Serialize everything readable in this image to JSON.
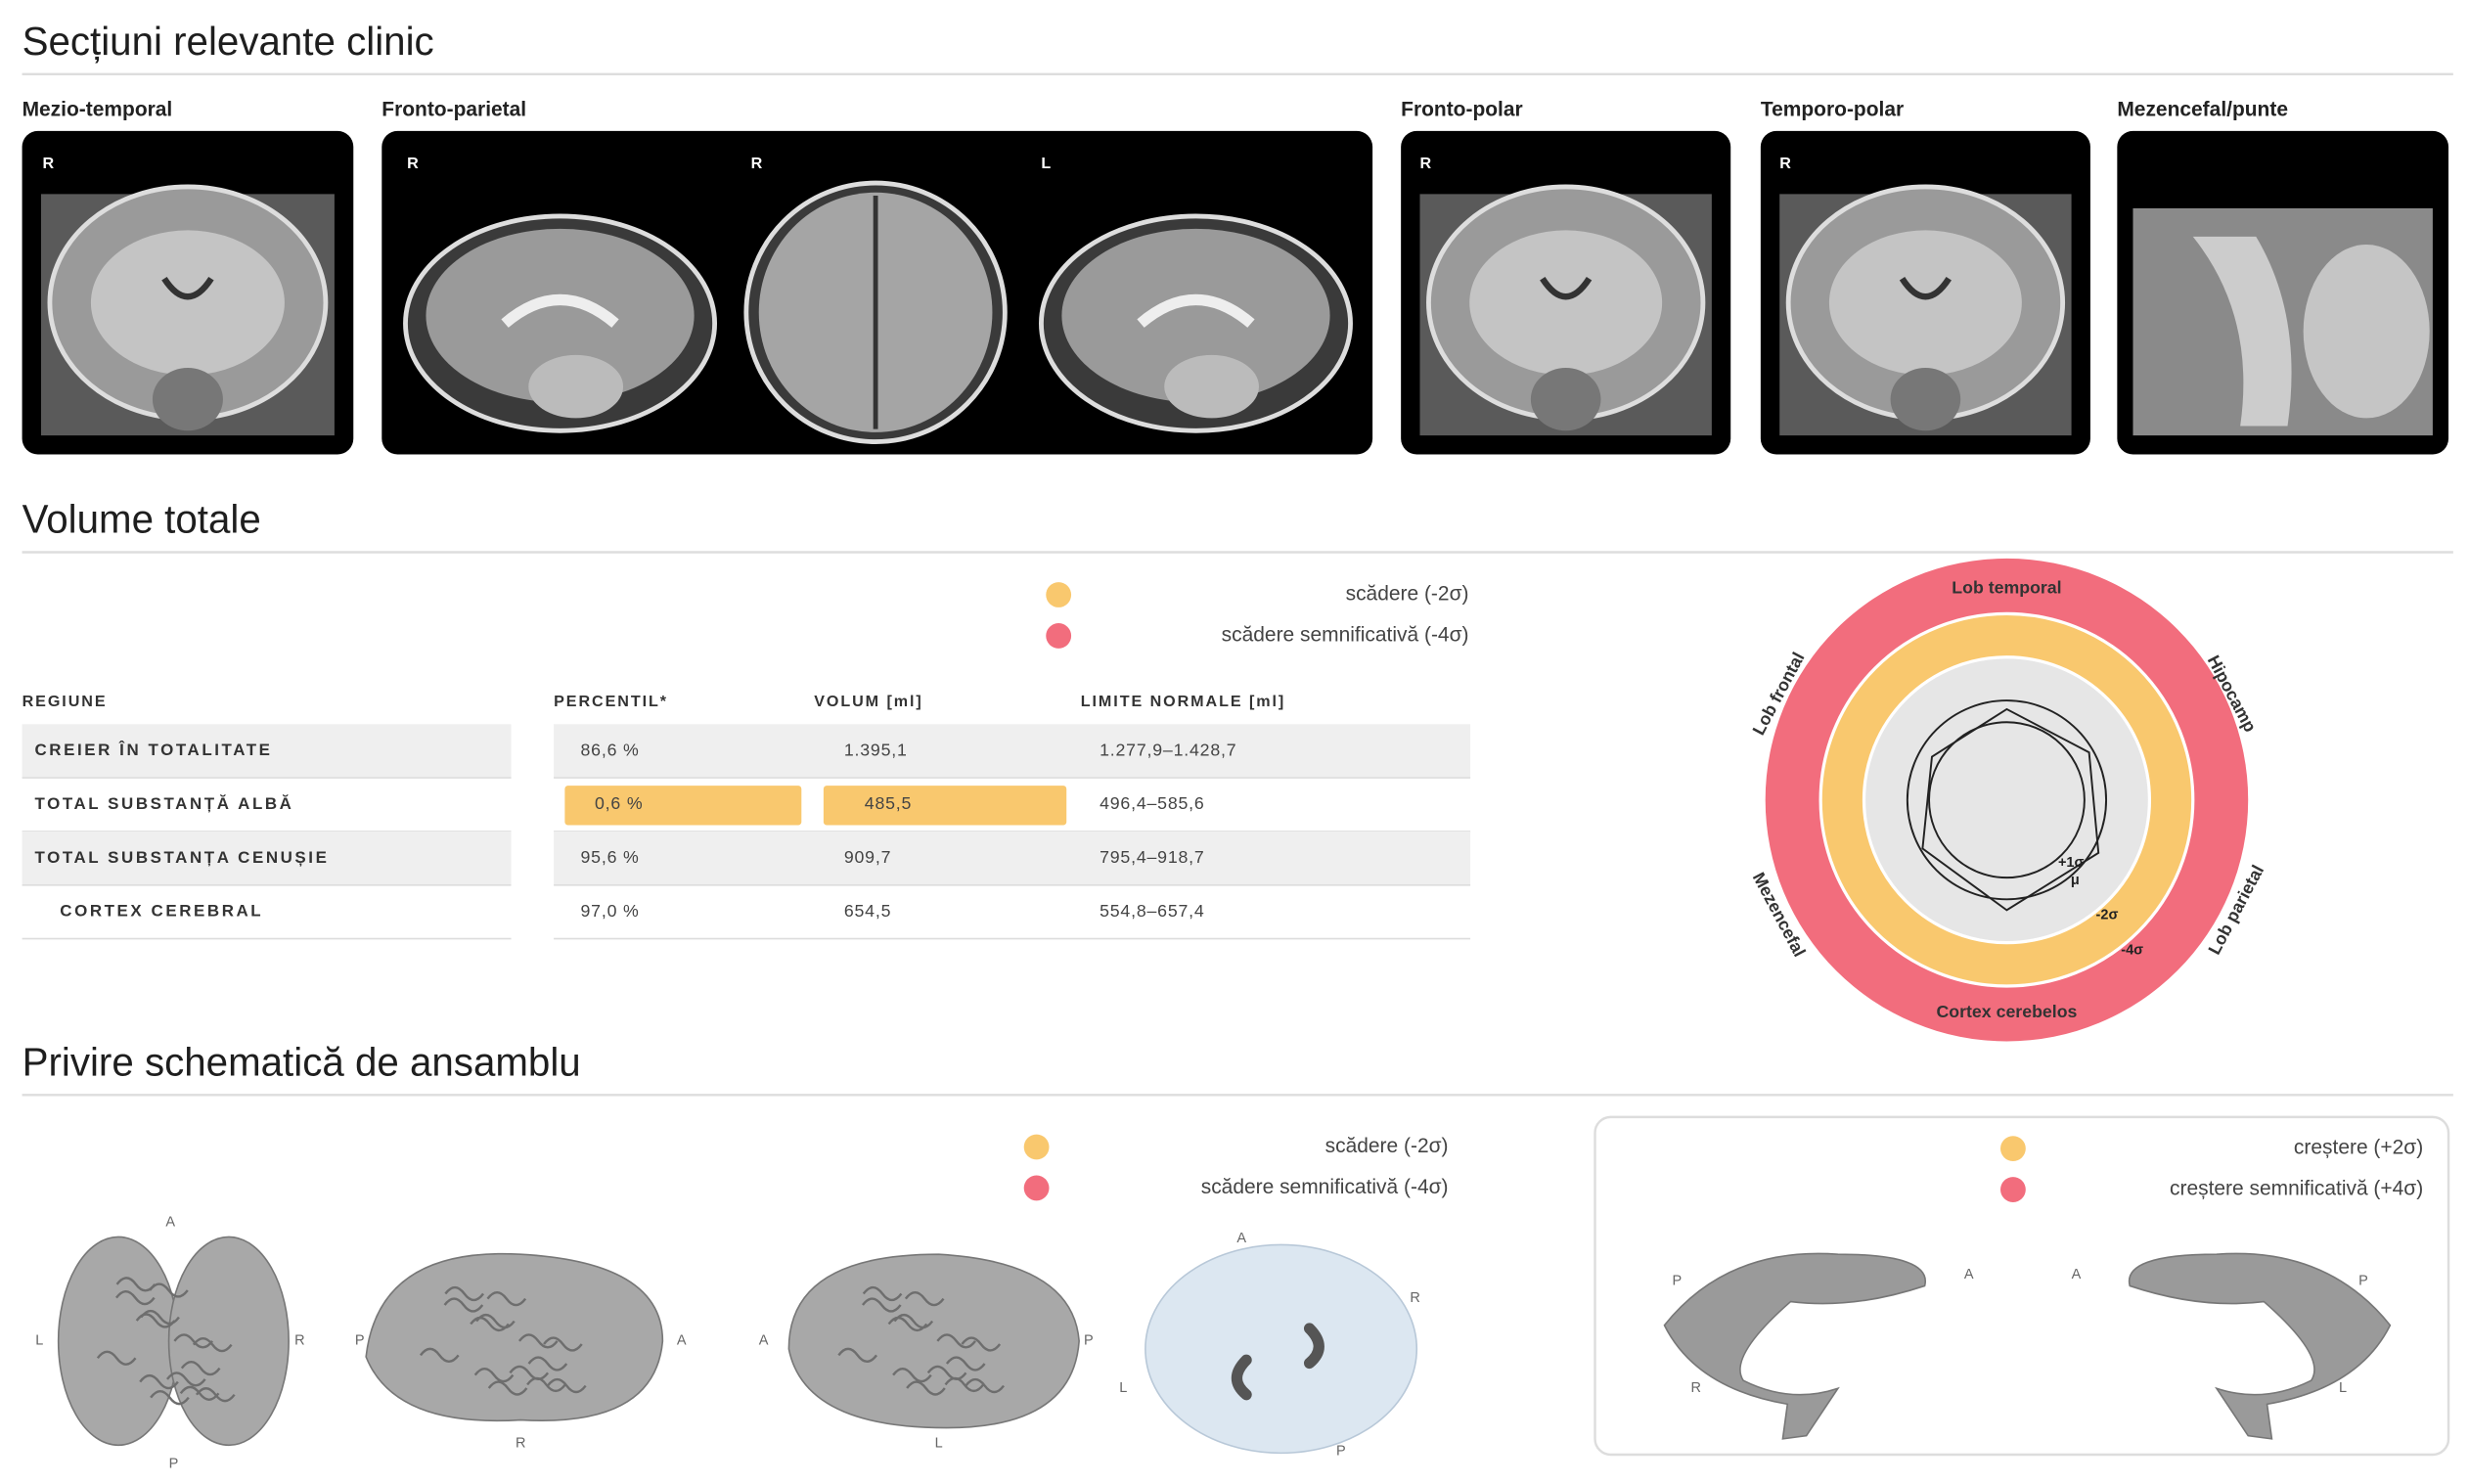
{
  "slices": {
    "title": "Secțiuni relevante clinic",
    "panels": [
      {
        "label": "Mezio-temporal",
        "views": [
          "R"
        ]
      },
      {
        "label": "Fronto-parietal",
        "views": [
          "R",
          "R",
          "L"
        ]
      },
      {
        "label": "Fronto-polar",
        "views": [
          "R"
        ]
      },
      {
        "label": "Temporo-polar",
        "views": [
          "R"
        ]
      },
      {
        "label": "Mezencefal/punte",
        "views": []
      }
    ]
  },
  "volumes": {
    "title": "Volume totale",
    "legend": [
      {
        "label": "scădere (-2σ)",
        "color": "#f9c86e"
      },
      {
        "label": "scădere semnificativă (-4σ)",
        "color": "#f26d7d"
      }
    ],
    "table": {
      "headers": [
        "REGIUNE",
        "PERCENTIL*",
        "VOLUM [ml]",
        "LIMITE NORMALE [ml]"
      ],
      "rows": [
        {
          "cells": [
            "CREIER ÎN TOTALITATE",
            "86,6 %",
            "1.395,1",
            "1.277,9–1.428,7"
          ]
        },
        {
          "cells": [
            "TOTAL SUBSTANȚĂ ALBĂ",
            "0,6 %",
            "485,5",
            "496,4–585,6"
          ],
          "highlight": "#f9c86e"
        },
        {
          "cells": [
            "TOTAL SUBSTANȚA CENUȘIE",
            "95,6 %",
            "909,7",
            "795,4–918,7"
          ]
        },
        {
          "cells": [
            "CORTEX CEREBRAL",
            "97,0 %",
            "654,5",
            "554,8–657,4"
          ],
          "indent": true
        }
      ]
    },
    "radar": {
      "axes": [
        "Lob temporal",
        "Hipocamp",
        "Lob parietal",
        "Cortex cerebelos",
        "Mezencefal",
        "Lob frontal"
      ],
      "values": [
        0.4,
        0.2,
        -0.3,
        -0.5,
        0.1,
        0.6
      ],
      "levels": [
        {
          "value": 1,
          "label": "+1σ"
        },
        {
          "value": 0,
          "label": "μ"
        },
        {
          "value": -2,
          "label": "-2σ"
        },
        {
          "value": -4,
          "label": "-4σ"
        }
      ],
      "normal_color": "#e6e6e6"
    }
  },
  "overview": {
    "title": "Privire schematică de ansamblu",
    "legend_decrease": [
      {
        "label": "scădere (-2σ)",
        "color": "#f9c86e"
      },
      {
        "label": "scădere semnificativă (-4σ)",
        "color": "#f26d7d"
      }
    ],
    "legend_increase": [
      {
        "label": "creștere (+2σ)",
        "color": "#f9c86e"
      },
      {
        "label": "creștere semnificativă (+4σ)",
        "color": "#f26d7d"
      }
    ],
    "views": [
      {
        "labels": [
          "A",
          "L",
          "R",
          "P"
        ]
      },
      {
        "labels": [
          "P",
          "A",
          "R"
        ]
      },
      {
        "labels": [
          "A",
          "P",
          "L"
        ]
      },
      {
        "labels": [
          "A",
          "R",
          "L",
          "P"
        ]
      },
      {
        "labels": [
          "P",
          "A",
          "R"
        ]
      },
      {
        "labels": [
          "A",
          "P",
          "L"
        ]
      }
    ]
  }
}
